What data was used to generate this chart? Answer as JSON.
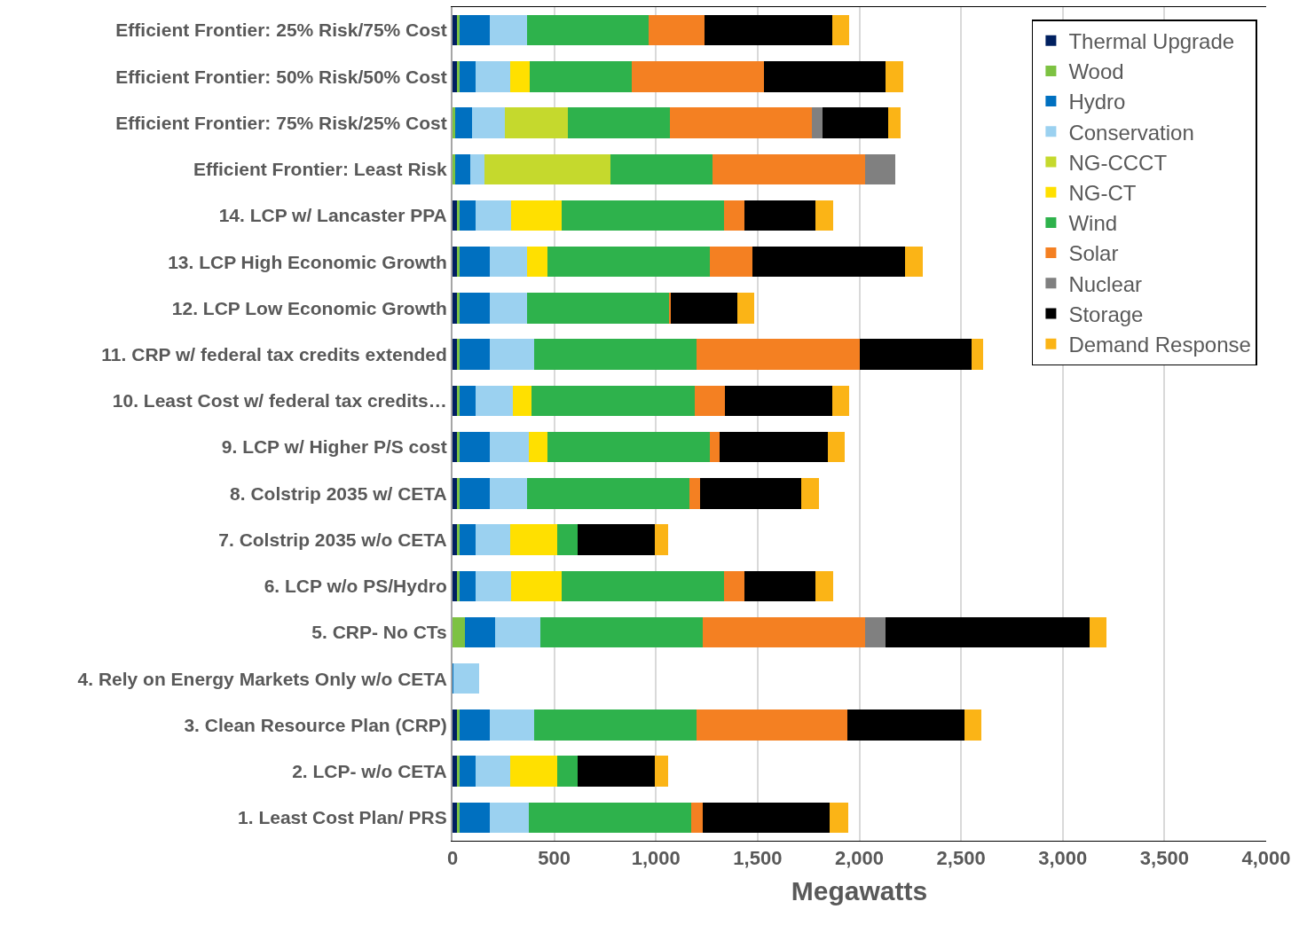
{
  "chart_data": {
    "type": "bar",
    "orientation": "horizontal",
    "stacked": true,
    "xlabel": "Megawatts",
    "categories": [
      "Efficient Frontier: 25% Risk/75% Cost",
      "Efficient Frontier: 50% Risk/50% Cost",
      "Efficient Frontier: 75% Risk/25% Cost",
      "Efficient Frontier: Least Risk",
      "14. LCP w/ Lancaster PPA",
      "13. LCP High Economic Growth",
      "12. LCP Low Economic Growth",
      "11. CRP w/ federal tax credits extended",
      "10. Least Cost w/ federal tax credits…",
      "9. LCP w/ Higher P/S cost",
      "8. Colstrip 2035 w/ CETA",
      "7. Colstrip 2035 w/o CETA",
      "6. LCP w/o PS/Hydro",
      "5. CRP- No CTs",
      "4. Rely on Energy Markets Only w/o CETA",
      "3. Clean Resource Plan (CRP)",
      "2. LCP- w/o CETA",
      "1. Least Cost Plan/ PRS"
    ],
    "series": [
      {
        "name": "Thermal Upgrade",
        "color": "#002060",
        "values": [
          20,
          20,
          0,
          0,
          20,
          20,
          20,
          20,
          20,
          20,
          20,
          20,
          20,
          0,
          0,
          20,
          20,
          20
        ]
      },
      {
        "name": "Wood",
        "color": "#7dc242",
        "values": [
          15,
          15,
          13,
          13,
          15,
          15,
          15,
          15,
          15,
          15,
          15,
          15,
          15,
          60,
          0,
          15,
          15,
          15
        ]
      },
      {
        "name": "Hydro",
        "color": "#0070c0",
        "values": [
          150,
          80,
          85,
          75,
          80,
          150,
          150,
          150,
          80,
          150,
          150,
          80,
          80,
          150,
          3,
          150,
          80,
          150
        ]
      },
      {
        "name": "Conservation",
        "color": "#9bd1f0",
        "values": [
          180,
          170,
          160,
          70,
          175,
          180,
          180,
          215,
          180,
          190,
          180,
          170,
          175,
          220,
          127,
          215,
          170,
          190
        ]
      },
      {
        "name": "NG-CCCT",
        "color": "#c5d92d",
        "values": [
          0,
          0,
          310,
          620,
          0,
          0,
          0,
          0,
          0,
          0,
          0,
          0,
          0,
          0,
          0,
          0,
          0,
          0
        ]
      },
      {
        "name": "NG-CT",
        "color": "#ffe000",
        "values": [
          0,
          95,
          0,
          0,
          245,
          100,
          0,
          0,
          95,
          90,
          0,
          230,
          245,
          0,
          0,
          0,
          230,
          0
        ]
      },
      {
        "name": "Wind",
        "color": "#2eb24c",
        "values": [
          600,
          500,
          500,
          500,
          800,
          800,
          700,
          800,
          800,
          800,
          800,
          100,
          800,
          800,
          0,
          800,
          100,
          800
        ]
      },
      {
        "name": "Solar",
        "color": "#f48022",
        "values": [
          275,
          650,
          700,
          750,
          100,
          210,
          10,
          800,
          150,
          50,
          50,
          0,
          100,
          800,
          0,
          740,
          0,
          55
        ]
      },
      {
        "name": "Nuclear",
        "color": "#808080",
        "values": [
          0,
          0,
          50,
          150,
          0,
          0,
          0,
          0,
          0,
          0,
          0,
          0,
          0,
          100,
          0,
          0,
          0,
          0
        ]
      },
      {
        "name": "Storage",
        "color": "#000000",
        "values": [
          625,
          600,
          325,
          0,
          350,
          750,
          325,
          550,
          525,
          530,
          500,
          380,
          350,
          1000,
          0,
          575,
          380,
          625
        ]
      },
      {
        "name": "Demand Response",
        "color": "#fbb416",
        "values": [
          85,
          85,
          60,
          0,
          85,
          85,
          85,
          60,
          85,
          85,
          85,
          65,
          85,
          85,
          0,
          85,
          65,
          90
        ]
      }
    ],
    "xlim": [
      0,
      4000
    ],
    "xticks": [
      0,
      500,
      {
        "value": 1000,
        "label": "1,000"
      },
      {
        "value": 1500,
        "label": "1,500"
      },
      {
        "value": 2000,
        "label": "2,000"
      },
      {
        "value": 2500,
        "label": "2,500"
      },
      {
        "value": 3000,
        "label": "3,000"
      },
      {
        "value": 3500,
        "label": "3,500"
      },
      {
        "value": 4000,
        "label": "4,000"
      }
    ],
    "grid": "x",
    "legend": "top right"
  }
}
